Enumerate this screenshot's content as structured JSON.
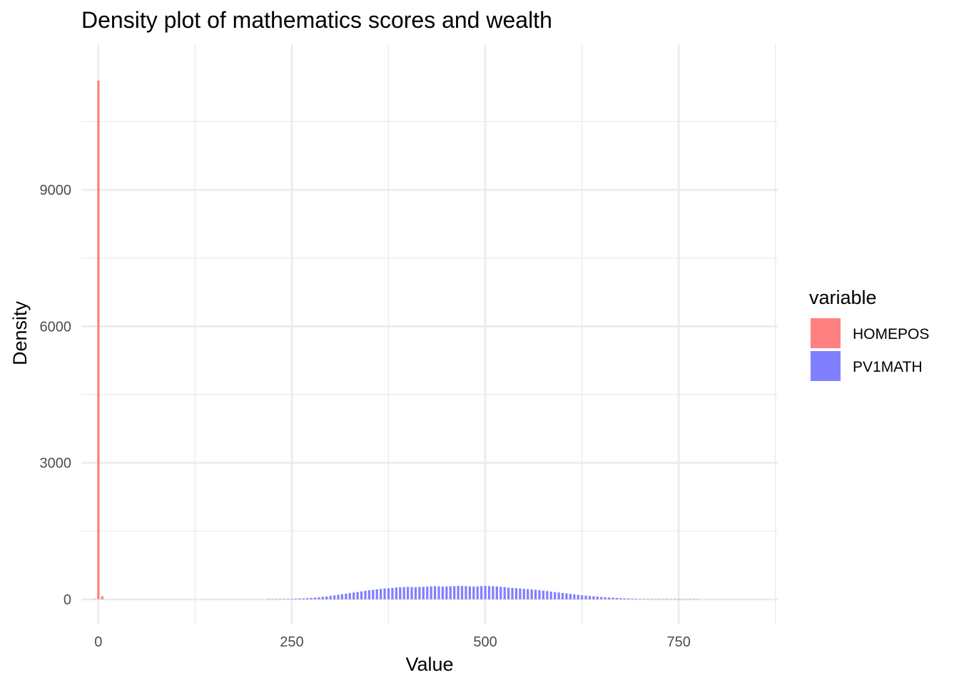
{
  "chart_data": {
    "type": "bar",
    "title": "Density plot of mathematics scores and wealth",
    "xlabel": "Value",
    "ylabel": "Density",
    "xlim": [
      -22,
      878
    ],
    "ylim": [
      -550,
      12200
    ],
    "x_ticks": [
      0,
      250,
      500,
      750
    ],
    "x_tick_labels": [
      "0",
      "250",
      "500",
      "750"
    ],
    "x_minor_ticks": [
      125,
      375,
      625,
      875
    ],
    "y_ticks": [
      0,
      3000,
      6000,
      9000
    ],
    "y_tick_labels": [
      "0",
      "3000",
      "6000",
      "9000"
    ],
    "y_minor_ticks": [
      1500,
      4500,
      7500,
      10500
    ],
    "grid": true,
    "legend": {
      "title": "variable",
      "position": "right"
    },
    "bin_width": 5,
    "series": [
      {
        "name": "HOMEPOS",
        "color": "#ff8080",
        "x": [
          -5,
          0,
          5
        ],
        "values": [
          10,
          11400,
          70
        ]
      },
      {
        "name": "PV1MATH",
        "color": "#8080ff",
        "x": [
          220,
          225,
          230,
          235,
          240,
          245,
          250,
          255,
          260,
          265,
          270,
          275,
          280,
          285,
          290,
          295,
          300,
          305,
          310,
          315,
          320,
          325,
          330,
          335,
          340,
          345,
          350,
          355,
          360,
          365,
          370,
          375,
          380,
          385,
          390,
          395,
          400,
          405,
          410,
          415,
          420,
          425,
          430,
          435,
          440,
          445,
          450,
          455,
          460,
          465,
          470,
          475,
          480,
          485,
          490,
          495,
          500,
          505,
          510,
          515,
          520,
          525,
          530,
          535,
          540,
          545,
          550,
          555,
          560,
          565,
          570,
          575,
          580,
          585,
          590,
          595,
          600,
          605,
          610,
          615,
          620,
          625,
          630,
          635,
          640,
          645,
          650,
          655,
          660,
          665,
          670,
          675,
          680,
          685,
          690,
          695,
          700,
          705,
          710,
          715,
          720,
          725,
          730,
          735,
          740,
          745,
          750,
          755,
          760,
          765,
          770,
          775
        ],
        "values": [
          2,
          3,
          5,
          6,
          8,
          10,
          12,
          15,
          18,
          22,
          26,
          32,
          38,
          45,
          55,
          62,
          75,
          88,
          100,
          112,
          125,
          138,
          150,
          162,
          175,
          188,
          200,
          210,
          220,
          230,
          240,
          245,
          250,
          260,
          265,
          270,
          275,
          270,
          268,
          272,
          275,
          278,
          285,
          290,
          285,
          280,
          283,
          288,
          292,
          295,
          293,
          290,
          285,
          280,
          283,
          290,
          295,
          292,
          288,
          282,
          275,
          268,
          258,
          250,
          245,
          240,
          232,
          225,
          218,
          210,
          200,
          190,
          180,
          170,
          160,
          150,
          140,
          130,
          120,
          110,
          100,
          90,
          82,
          75,
          68,
          60,
          52,
          45,
          40,
          35,
          30,
          26,
          22,
          18,
          15,
          12,
          10,
          8,
          6,
          5,
          4,
          3,
          2,
          2,
          1,
          1,
          1,
          1,
          1,
          1,
          1,
          0
        ]
      }
    ]
  }
}
